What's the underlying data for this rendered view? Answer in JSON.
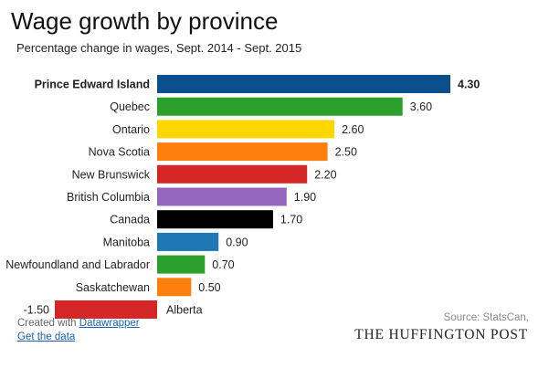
{
  "title": "Wage growth by province",
  "subtitle": "Percentage change in wages, Sept. 2014 - Sept. 2015",
  "credit": {
    "prefix": "Created with ",
    "link": "Datawrapper",
    "data_link": "Get the data"
  },
  "source": "Source: StatsCan,",
  "brand": "THE HUFFINGTON POST",
  "chart_data": {
    "type": "bar",
    "orientation": "horizontal",
    "categories": [
      "Prince Edward Island",
      "Quebec",
      "Ontario",
      "Nova Scotia",
      "New Brunswick",
      "British Columbia",
      "Canada",
      "Manitoba",
      "Newfoundland and Labrador",
      "Saskatchewan",
      "Alberta"
    ],
    "values": [
      4.3,
      3.6,
      2.6,
      2.5,
      2.2,
      1.9,
      1.7,
      0.9,
      0.7,
      0.5,
      -1.5
    ],
    "value_labels": [
      "4.30",
      "3.60",
      "2.60",
      "2.50",
      "2.20",
      "1.90",
      "1.70",
      "0.90",
      "0.70",
      "0.50",
      "-1.50"
    ],
    "colors": [
      "#0b4f8c",
      "#2ca02c",
      "#ffd700",
      "#ff7f0e",
      "#d62728",
      "#9467bd",
      "#000000",
      "#1f77b4",
      "#2ca02c",
      "#ff7f0e",
      "#d62728"
    ],
    "highlight": "Prince Edward Island",
    "xlim": [
      -1.5,
      4.3
    ],
    "grid": false
  }
}
